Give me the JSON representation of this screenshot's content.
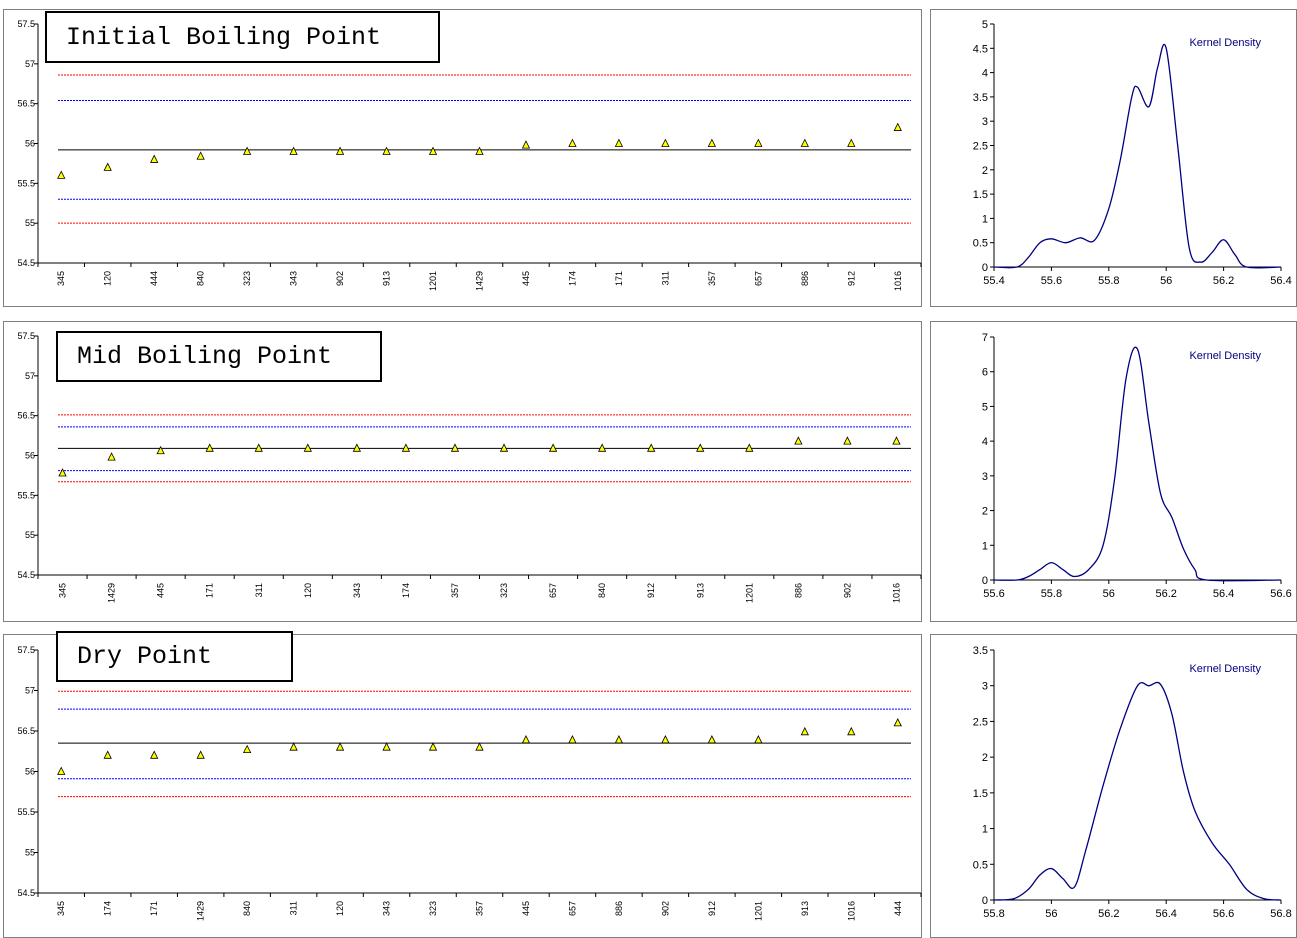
{
  "chart_data": [
    {
      "type": "scatter",
      "title": "Initial Boiling Point",
      "ylim": [
        54.5,
        57.5
      ],
      "yticks": [
        "57.5",
        "57",
        "56.5",
        "56",
        "55.5",
        "55",
        "54.5"
      ],
      "categories": [
        "345",
        "120",
        "444",
        "840",
        "323",
        "343",
        "902",
        "913",
        "1201",
        "1429",
        "445",
        "174",
        "171",
        "311",
        "357",
        "657",
        "886",
        "912",
        "1016"
      ],
      "values": [
        55.6,
        55.7,
        55.8,
        55.84,
        55.9,
        55.9,
        55.9,
        55.9,
        55.9,
        55.9,
        55.98,
        56.0,
        56.0,
        56.0,
        56.0,
        56.0,
        56.0,
        56.0,
        56.2
      ],
      "reference_lines": {
        "mean": 55.92,
        "blue_upper": 56.54,
        "blue_lower": 55.3,
        "red_upper": 56.86,
        "red_lower": 55.0
      },
      "colors": {
        "marker": "#ffff00",
        "mean": "#000000",
        "blue": "#0000ff",
        "red": "#ff0000"
      }
    },
    {
      "type": "line",
      "legend": "Kernel Density",
      "legend_position": "top-right",
      "xlim": [
        55.4,
        56.4
      ],
      "xticks": [
        "55.4",
        "55.6",
        "55.8",
        "56",
        "56.2",
        "56.4"
      ],
      "ylim": [
        0,
        5
      ],
      "yticks": [
        "0",
        "0.5",
        "1",
        "1.5",
        "2",
        "2.5",
        "3",
        "3.5",
        "4",
        "4.5",
        "5"
      ],
      "x": [
        55.4,
        55.48,
        55.52,
        55.56,
        55.6,
        55.65,
        55.7,
        55.75,
        55.8,
        55.84,
        55.88,
        55.9,
        55.94,
        55.97,
        56.0,
        56.04,
        56.08,
        56.12,
        56.16,
        56.2,
        56.24,
        56.28,
        56.4
      ],
      "y": [
        0,
        0.0,
        0.2,
        0.5,
        0.58,
        0.5,
        0.6,
        0.55,
        1.2,
        2.2,
        3.5,
        3.7,
        3.3,
        4.1,
        4.5,
        2.5,
        0.4,
        0.1,
        0.3,
        0.56,
        0.25,
        0.0,
        0
      ],
      "colors": {
        "line": "#000080"
      }
    },
    {
      "type": "scatter",
      "title": "Mid Boiling Point",
      "ylim": [
        54.5,
        57.5
      ],
      "yticks": [
        "57.5",
        "57",
        "56.5",
        "56",
        "55.5",
        "55",
        "54.5"
      ],
      "categories": [
        "345",
        "1429",
        "445",
        "171",
        "311",
        "120",
        "343",
        "174",
        "357",
        "323",
        "657",
        "840",
        "912",
        "913",
        "1201",
        "886",
        "902",
        "1016"
      ],
      "values": [
        55.78,
        55.98,
        56.06,
        56.09,
        56.09,
        56.09,
        56.09,
        56.09,
        56.09,
        56.09,
        56.09,
        56.09,
        56.09,
        56.09,
        56.09,
        56.18,
        56.18,
        56.18
      ],
      "reference_lines": {
        "mean": 56.09,
        "blue_upper": 56.36,
        "blue_lower": 55.81,
        "red_upper": 56.51,
        "red_lower": 55.67
      },
      "colors": {
        "marker": "#ffff00",
        "mean": "#000000",
        "blue": "#0000ff",
        "red": "#ff0000"
      }
    },
    {
      "type": "line",
      "legend": "Kernel Density",
      "legend_position": "top-right",
      "xlim": [
        55.6,
        56.6
      ],
      "xticks": [
        "55.6",
        "55.8",
        "56",
        "56.2",
        "56.4",
        "56.6"
      ],
      "ylim": [
        0,
        7
      ],
      "yticks": [
        "0",
        "1",
        "2",
        "3",
        "4",
        "5",
        "6",
        "7"
      ],
      "x": [
        55.6,
        55.68,
        55.72,
        55.76,
        55.8,
        55.84,
        55.88,
        55.93,
        55.98,
        56.02,
        56.06,
        56.1,
        56.14,
        56.18,
        56.22,
        56.26,
        56.3,
        56.34,
        56.6
      ],
      "y": [
        0,
        0.0,
        0.1,
        0.3,
        0.5,
        0.3,
        0.1,
        0.3,
        1.0,
        2.9,
        5.8,
        6.65,
        4.5,
        2.5,
        1.8,
        0.9,
        0.3,
        0.0,
        0
      ],
      "colors": {
        "line": "#000080"
      }
    },
    {
      "type": "scatter",
      "title": "Dry Point",
      "ylim": [
        54.5,
        57.5
      ],
      "yticks": [
        "57.5",
        "57",
        "56.5",
        "56",
        "55.5",
        "55",
        "54.5"
      ],
      "categories": [
        "345",
        "174",
        "171",
        "1429",
        "840",
        "311",
        "120",
        "343",
        "323",
        "357",
        "445",
        "657",
        "886",
        "902",
        "912",
        "1201",
        "913",
        "1016",
        "444"
      ],
      "values": [
        56.0,
        56.2,
        56.2,
        56.2,
        56.27,
        56.3,
        56.3,
        56.3,
        56.3,
        56.3,
        56.39,
        56.39,
        56.39,
        56.39,
        56.39,
        56.39,
        56.49,
        56.49,
        56.6
      ],
      "reference_lines": {
        "mean": 56.35,
        "blue_upper": 56.77,
        "blue_lower": 55.91,
        "red_upper": 56.99,
        "red_lower": 55.69
      },
      "colors": {
        "marker": "#ffff00",
        "mean": "#000000",
        "blue": "#0000ff",
        "red": "#ff0000"
      }
    },
    {
      "type": "line",
      "legend": "Kernel Density",
      "legend_position": "top-right",
      "xlim": [
        55.8,
        56.8
      ],
      "xticks": [
        "55.8",
        "56",
        "56.2",
        "56.4",
        "56.6",
        "56.8"
      ],
      "ylim": [
        0,
        3.5
      ],
      "yticks": [
        "0",
        "0.5",
        "1",
        "1.5",
        "2",
        "2.5",
        "3",
        "3.5"
      ],
      "x": [
        55.8,
        55.87,
        55.92,
        55.96,
        56.0,
        56.04,
        56.08,
        56.12,
        56.18,
        56.24,
        56.3,
        56.34,
        56.38,
        56.42,
        56.46,
        56.5,
        56.56,
        56.62,
        56.68,
        56.74,
        56.8
      ],
      "y": [
        0,
        0.02,
        0.15,
        0.35,
        0.44,
        0.3,
        0.18,
        0.7,
        1.6,
        2.4,
        3.0,
        3.0,
        3.02,
        2.6,
        1.8,
        1.25,
        0.8,
        0.5,
        0.15,
        0.02,
        0
      ],
      "colors": {
        "line": "#000080"
      }
    }
  ]
}
